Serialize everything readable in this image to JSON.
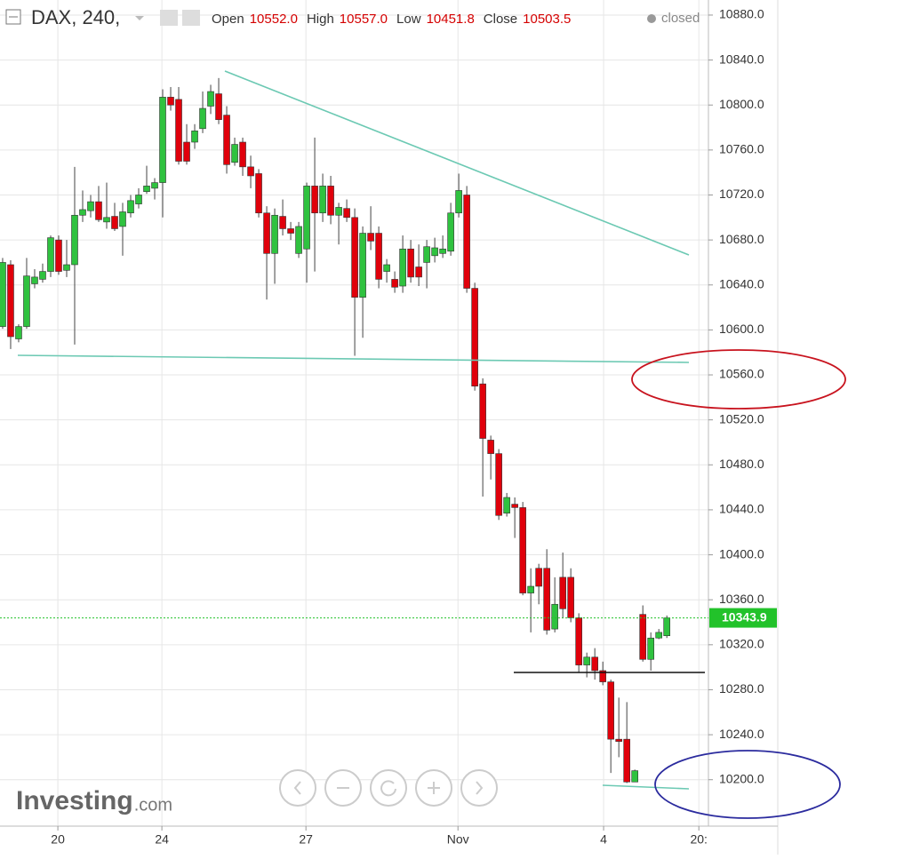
{
  "chart_data": {
    "type": "candlestick",
    "symbol": "DAX, 240,",
    "status": "closed",
    "readout": [
      {
        "label": "Open",
        "value": "10552.0"
      },
      {
        "label": "High",
        "value": "10557.0"
      },
      {
        "label": "Low",
        "value": "10451.8"
      },
      {
        "label": "Close",
        "value": "10503.5"
      }
    ],
    "watermark": "Investing",
    "watermark_suffix": ".com",
    "up_color": "#2fc23f",
    "down_color": "#e0000b",
    "grid": true,
    "last_price": 10343.9,
    "last_price_color": "#22c22a",
    "xlim": [
      -0.33,
      88.2
    ],
    "xticks": [
      {
        "value": 6.9,
        "label": "20"
      },
      {
        "value": 19.9,
        "label": "24"
      },
      {
        "value": 37.9,
        "label": "27"
      },
      {
        "value": 56.9,
        "label": "Nov"
      },
      {
        "value": 75.1,
        "label": "4"
      },
      {
        "value": 87.0,
        "label": "20:"
      }
    ],
    "ylim": [
      10158.7,
      10893.4
    ],
    "yticks": [
      {
        "value": 10200,
        "label": "10200.0"
      },
      {
        "value": 10240,
        "label": "10240.0"
      },
      {
        "value": 10280,
        "label": "10280.0"
      },
      {
        "value": 10320,
        "label": "10320.0"
      },
      {
        "value": 10360,
        "label": "10360.0"
      },
      {
        "value": 10400,
        "label": "10400.0"
      },
      {
        "value": 10440,
        "label": "10440.0"
      },
      {
        "value": 10480,
        "label": "10480.0"
      },
      {
        "value": 10520,
        "label": "10520.0"
      },
      {
        "value": 10560,
        "label": "10560.0"
      },
      {
        "value": 10600,
        "label": "10600.0"
      },
      {
        "value": 10640,
        "label": "10640.0"
      },
      {
        "value": 10680,
        "label": "10680.0"
      },
      {
        "value": 10720,
        "label": "10720.0"
      },
      {
        "value": 10760,
        "label": "10760.0"
      },
      {
        "value": 10800,
        "label": "10800.0"
      },
      {
        "value": 10840,
        "label": "10840.0"
      },
      {
        "value": 10880,
        "label": "10880.0"
      }
    ],
    "open": [
      10603,
      10658,
      10592,
      10603,
      10641,
      10645,
      10652,
      10680,
      10653,
      10658,
      10702,
      10706,
      10714,
      10696,
      10701,
      10692,
      10704,
      10712,
      10723,
      10726,
      10731,
      10807,
      10805,
      10767,
      10767,
      10779,
      10799,
      10810,
      10791,
      10749,
      10767,
      10745,
      10739,
      10704,
      10668,
      10701,
      10690,
      10668,
      10672,
      10728,
      10704,
      10728,
      10702,
      10708,
      10700,
      10629,
      10686,
      10686,
      10652,
      10645,
      10639,
      10672,
      10656,
      10660,
      10666,
      10668,
      10670,
      10704,
      10720,
      10637,
      10552,
      10502,
      10490,
      10437,
      10445,
      10442,
      10366,
      10388,
      10388,
      10334,
      10380,
      10380,
      10344,
      10302,
      10309,
      10297,
      10287,
      10236,
      10236,
      10198,
      10347,
      10307,
      10326,
      10328
    ],
    "high": [
      10664,
      10662,
      10605,
      10664,
      10654,
      10659,
      10684,
      10684,
      10680,
      10745,
      10724,
      10720,
      10728,
      10731,
      10713,
      10713,
      10720,
      10726,
      10746,
      10735,
      10814,
      10816,
      10816,
      10783,
      10783,
      10812,
      10818,
      10824,
      10799,
      10771,
      10771,
      10755,
      10743,
      10710,
      10708,
      10716,
      10696,
      10696,
      10731,
      10771,
      10739,
      10737,
      10713,
      10716,
      10708,
      10692,
      10710,
      10692,
      10663,
      10652,
      10684,
      10680,
      10676,
      10680,
      10682,
      10684,
      10713,
      10739,
      10728,
      10642,
      10557,
      10506,
      10494,
      10455,
      10451,
      10447,
      10388,
      10392,
      10405,
      10380,
      10402,
      10388,
      10348,
      10313,
      10317,
      10305,
      10289,
      10273,
      10269,
      10209,
      10355,
      10331,
      10334,
      10346
    ],
    "low": [
      10601,
      10583,
      10589,
      10601,
      10637,
      10642,
      10647,
      10649,
      10647,
      10587,
      10696,
      10700,
      10696,
      10690,
      10688,
      10666,
      10700,
      10708,
      10721,
      10716,
      10700,
      10795,
      10747,
      10747,
      10761,
      10775,
      10792,
      10783,
      10739,
      10746,
      10737,
      10726,
      10700,
      10627,
      10641,
      10684,
      10680,
      10664,
      10642,
      10652,
      10696,
      10694,
      10676,
      10696,
      10577,
      10593,
      10671,
      10637,
      10642,
      10633,
      10633,
      10642,
      10639,
      10637,
      10660,
      10664,
      10666,
      10700,
      10633,
      10546,
      10451.8,
      10467,
      10431,
      10434,
      10415,
      10364,
      10331,
      10356,
      10329,
      10331,
      10344,
      10340,
      10295,
      10291,
      10289,
      10284,
      10206,
      10220,
      10197,
      10198,
      10305,
      10297,
      10325,
      10326
    ],
    "close": [
      10660,
      10594,
      10603,
      10648,
      10647,
      10652,
      10682,
      10652,
      10658,
      10702,
      10707,
      10714,
      10698,
      10700,
      10690,
      10705,
      10715,
      10720,
      10728,
      10731,
      10807,
      10800,
      10750,
      10750,
      10777,
      10797,
      10812,
      10787,
      10747,
      10765,
      10745,
      10737,
      10704,
      10668,
      10702,
      10690,
      10686,
      10692,
      10728,
      10704,
      10728,
      10702,
      10709,
      10700,
      10629,
      10686,
      10679,
      10645,
      10658,
      10638,
      10672,
      10647,
      10647,
      10674,
      10673,
      10672,
      10704,
      10724,
      10637,
      10550,
      10503.5,
      10490,
      10435,
      10451,
      10442,
      10366,
      10372,
      10372,
      10333,
      10356,
      10352,
      10344,
      10302,
      10309,
      10297,
      10287,
      10236,
      10234,
      10198,
      10208,
      10307,
      10326,
      10331,
      10343.9
    ]
  }
}
